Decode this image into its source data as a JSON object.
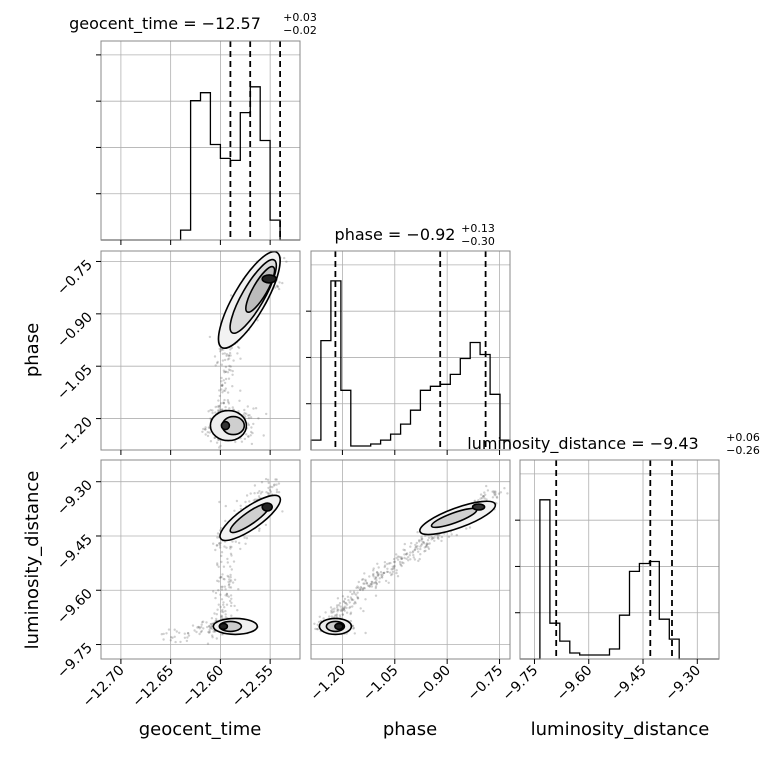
{
  "chart_data": {
    "type": "corner",
    "parameters": [
      "geocent_time",
      "phase",
      "luminosity_distance"
    ],
    "ranges": {
      "geocent_time": [
        -12.72,
        -12.52
      ],
      "phase": [
        -1.29,
        -0.72
      ],
      "luminosity_distance": [
        -9.79,
        -9.24
      ]
    },
    "ticks": {
      "geocent_time": [
        -12.7,
        -12.65,
        -12.6,
        -12.55
      ],
      "phase": [
        -1.2,
        -1.05,
        -0.9,
        -0.75
      ],
      "luminosity_distance": [
        -9.75,
        -9.6,
        -9.45,
        -9.3
      ]
    },
    "tick_labels": {
      "geocent_time": [
        "−12.70",
        "−12.65",
        "−12.60",
        "−12.55"
      ],
      "phase": [
        "−1.20",
        "−1.05",
        "−0.90",
        "−0.75"
      ],
      "luminosity_distance": [
        "−9.75",
        "−9.60",
        "−9.45",
        "−9.30"
      ]
    },
    "axis_labels": {
      "geocent_time": "geocent_time",
      "phase": "phase",
      "luminosity_distance": "luminosity_distance"
    },
    "titles": [
      {
        "param": "geocent_time",
        "main": "geocent_time = −12.57",
        "sup": "+0.03",
        "sub": "−0.02"
      },
      {
        "param": "phase",
        "main": "phase = −0.92",
        "sup": "+0.13",
        "sub": "−0.30"
      },
      {
        "param": "luminosity_distance",
        "main": "luminosity_distance = −9.43",
        "sup": "+0.06",
        "sub": "−0.26"
      }
    ],
    "quantiles": {
      "geocent_time": [
        -12.59,
        -12.57,
        -12.54
      ],
      "phase": [
        -1.22,
        -0.92,
        -0.79
      ],
      "luminosity_distance": [
        -9.69,
        -9.43,
        -9.37
      ]
    },
    "histograms": {
      "geocent_time": [
        0,
        0,
        0,
        0,
        0,
        0,
        0,
        0,
        0.05,
        0.7,
        0.74,
        0.48,
        0.41,
        0.4,
        0.64,
        0.77,
        0.5,
        0.1,
        0,
        0
      ],
      "phase": [
        0.05,
        0.55,
        0.85,
        0.3,
        0.02,
        0.02,
        0.03,
        0.05,
        0.08,
        0.13,
        0.2,
        0.3,
        0.32,
        0.33,
        0.38,
        0.46,
        0.54,
        0.48,
        0.28,
        0.05
      ],
      "luminosity_distance": [
        0,
        0,
        0.8,
        0.18,
        0.09,
        0.03,
        0.02,
        0.02,
        0.02,
        0.05,
        0.22,
        0.44,
        0.48,
        0.49,
        0.2,
        0.1,
        0,
        0,
        0,
        0
      ]
    },
    "histogram_bins": 20,
    "grid": true,
    "modes": [
      {
        "pairs": {
          "geocent_time|phase": {
            "from": [
              -12.595,
              -0.99
            ],
            "to": [
              -12.545,
              -0.76
            ],
            "spread": 0.006
          },
          "geocent_time|luminosity_distance": {
            "from": [
              -12.595,
              -9.45
            ],
            "to": [
              -12.545,
              -9.33
            ],
            "spread": 0.006
          }
        }
      },
      {
        "pairs": {
          "geocent_time|phase": {
            "center": [
              -12.59,
              -1.22
            ],
            "sx": 0.012,
            "sy": 0.025
          },
          "geocent_time|luminosity_distance": {
            "center": [
              -12.59,
              -9.7
            ],
            "sx": 0.012,
            "sy": 0.01
          }
        }
      }
    ],
    "phase_distance_track": {
      "from": [
        -1.25,
        -9.71
      ],
      "to": [
        -0.75,
        -9.33
      ]
    }
  }
}
